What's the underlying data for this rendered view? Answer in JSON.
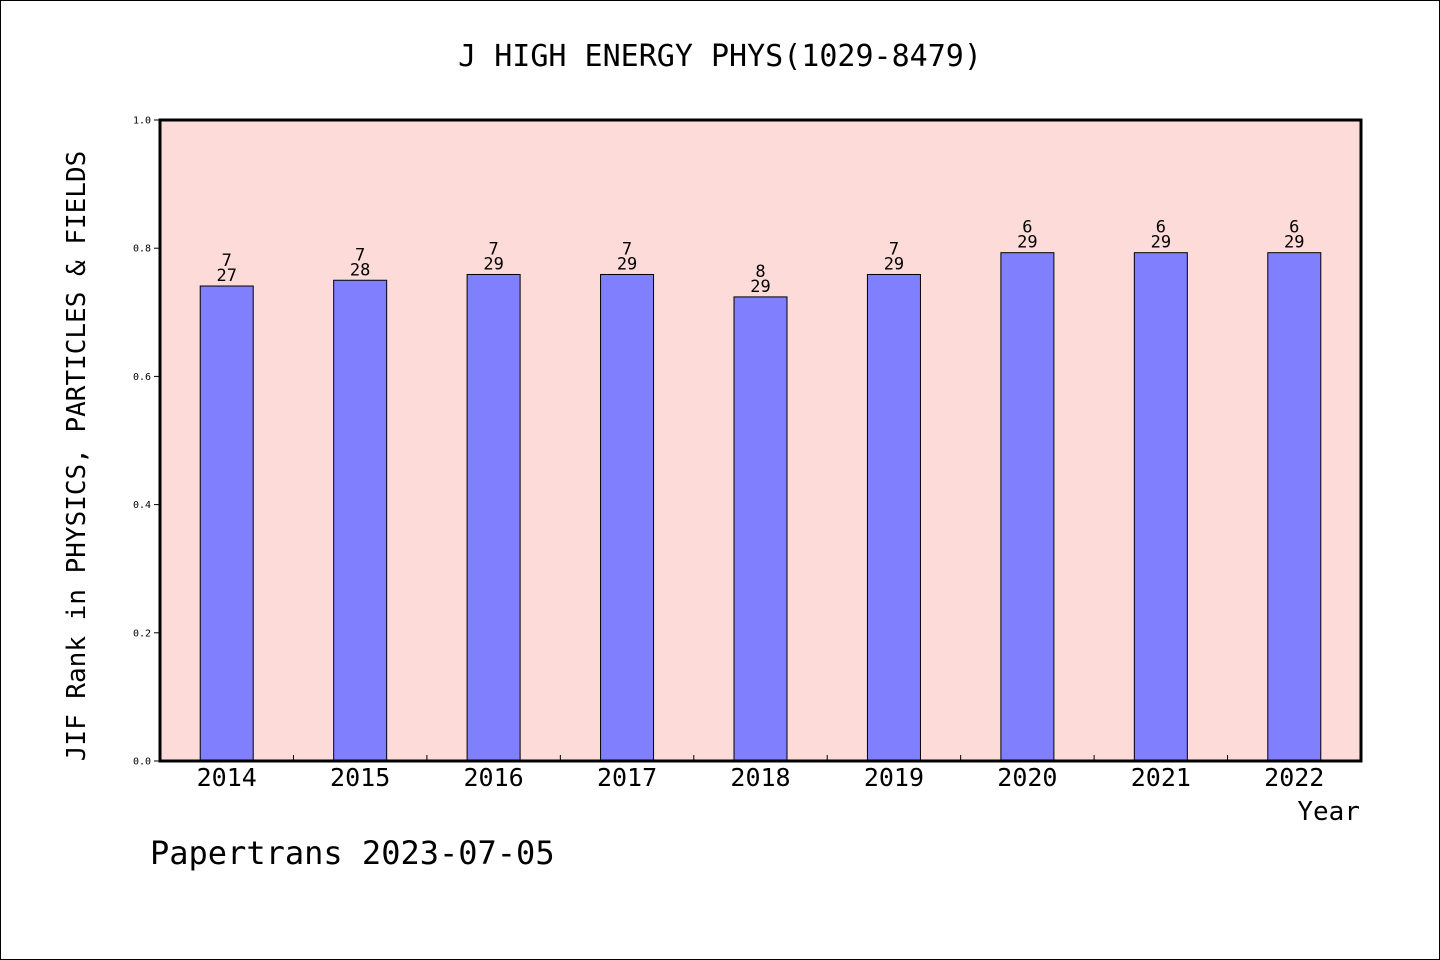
{
  "chart_data": {
    "type": "bar",
    "title": "J HIGH ENERGY PHYS(1029-8479)",
    "xlabel": "Year",
    "ylabel": "JIF Rank in PHYSICS, PARTICLES & FIELDS",
    "ylim": [
      0,
      1.0
    ],
    "yticks": [
      "0.0",
      "0.2",
      "0.4",
      "0.6",
      "0.8",
      "1.0"
    ],
    "categories": [
      "2014",
      "2015",
      "2016",
      "2017",
      "2018",
      "2019",
      "2020",
      "2021",
      "2022"
    ],
    "values": [
      0.741,
      0.75,
      0.759,
      0.759,
      0.724,
      0.759,
      0.793,
      0.793,
      0.793
    ],
    "rank": [
      "7",
      "7",
      "7",
      "7",
      "8",
      "7",
      "6",
      "6",
      "6"
    ],
    "total": [
      "27",
      "28",
      "29",
      "29",
      "29",
      "29",
      "29",
      "29",
      "29"
    ],
    "grid": false,
    "colors": {
      "bar": "#8080ff",
      "plot_bg": "#fddbd8",
      "border": "#000000"
    }
  },
  "footer": "Papertrans 2023-07-05"
}
